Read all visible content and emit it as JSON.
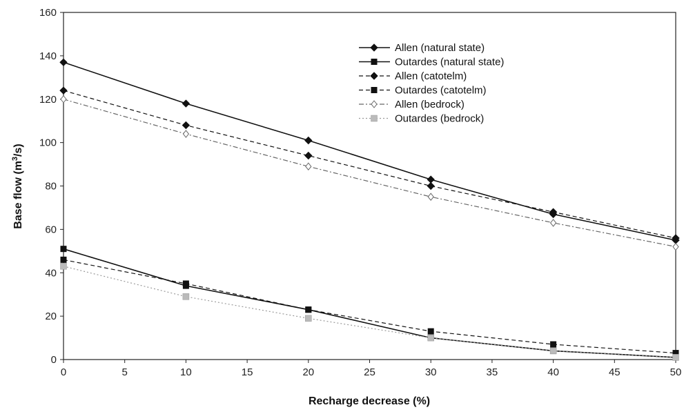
{
  "chart_data": {
    "type": "line",
    "title": "",
    "xlabel": "Recharge decrease (%)",
    "ylabel_main": "Base flow (m",
    "ylabel_sup": "3",
    "ylabel_end": "/s)",
    "xlim": [
      0,
      50
    ],
    "ylim": [
      0,
      160
    ],
    "xticks": [
      "0",
      "5",
      "10",
      "15",
      "20",
      "25",
      "30",
      "35",
      "40",
      "45",
      "50"
    ],
    "yticks": [
      "0",
      "20",
      "40",
      "60",
      "80",
      "100",
      "120",
      "140",
      "160"
    ],
    "grid": false,
    "legend_position": "top-right",
    "x": [
      0,
      10,
      20,
      30,
      40,
      50
    ],
    "series": [
      {
        "name": "Allen (natural state)",
        "values": [
          137,
          118,
          101,
          83,
          67,
          55
        ],
        "color": "#111111",
        "dash": "solid",
        "marker": "diamond-filled"
      },
      {
        "name": "Outardes (natural state)",
        "values": [
          51,
          34,
          23,
          10,
          4,
          1
        ],
        "color": "#111111",
        "dash": "solid",
        "marker": "square-filled"
      },
      {
        "name": "Allen (catotelm)",
        "values": [
          124,
          108,
          94,
          80,
          68,
          56
        ],
        "color": "#111111",
        "dash": "dashed",
        "marker": "diamond-filled"
      },
      {
        "name": "Outardes (catotelm)",
        "values": [
          46,
          35,
          23,
          13,
          7,
          3
        ],
        "color": "#111111",
        "dash": "dashed",
        "marker": "square-filled"
      },
      {
        "name": "Allen (bedrock)",
        "values": [
          120,
          104,
          89,
          75,
          63,
          52
        ],
        "color": "#666666",
        "dash": "dashdot",
        "marker": "diamond-open"
      },
      {
        "name": "Outardes (bedrock)",
        "values": [
          43,
          29,
          19,
          10,
          4,
          1
        ],
        "color": "#999999",
        "dash": "dotted",
        "marker": "square-gray"
      }
    ]
  }
}
